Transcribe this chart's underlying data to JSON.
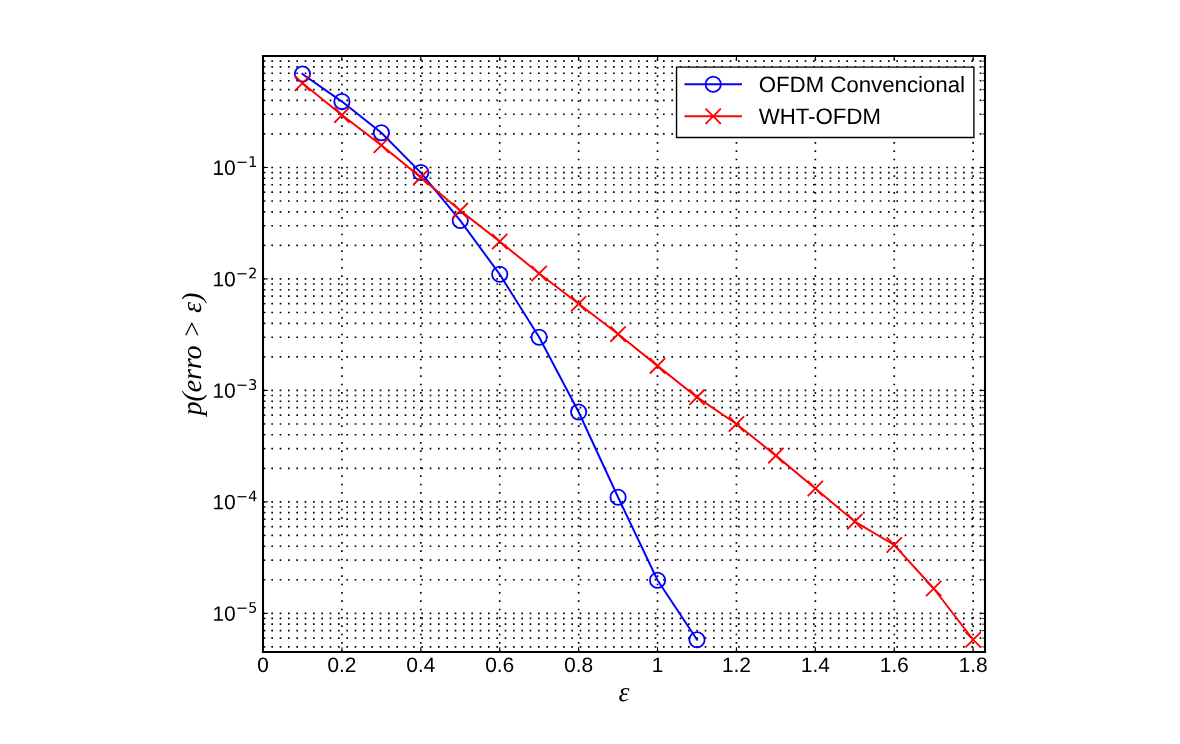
{
  "chart_data": {
    "type": "line",
    "xlabel": "ε",
    "ylabel": "p(erro > ε)",
    "log": "y",
    "grid": true,
    "legend": "top right",
    "xlim": [
      0,
      1.83
    ],
    "ylim": [
      4.5e-06,
      1
    ],
    "xticks": [
      0,
      0.2,
      0.4,
      0.6,
      0.8,
      1,
      1.2,
      1.4,
      1.6,
      1.8
    ],
    "yticks": [
      {
        "value": 1e-05,
        "label": "10$^{−5}$"
      },
      {
        "value": 0.0001,
        "label": "10$^{−4}$"
      },
      {
        "value": 0.001,
        "label": "10$^{−3}$"
      },
      {
        "value": 0.01,
        "label": "10$^{−2}$"
      },
      {
        "value": 0.1,
        "label": "10$^{−1}$"
      }
    ],
    "series": [
      {
        "name": "OFDM Convencional",
        "color": "#0000ff",
        "marker": "circle",
        "x": [
          0.1,
          0.2,
          0.3,
          0.4,
          0.5,
          0.6,
          0.7,
          0.8,
          0.9,
          1.0,
          1.1
        ],
        "values": [
          0.69,
          0.39,
          0.205,
          0.09,
          0.0334,
          0.011,
          0.003,
          0.00064,
          0.00011,
          1.98e-05,
          5.8e-06
        ]
      },
      {
        "name": "WHT-OFDM",
        "color": "#ff0000",
        "marker": "cross",
        "x": [
          0.1,
          0.2,
          0.3,
          0.4,
          0.5,
          0.6,
          0.7,
          0.8,
          0.9,
          1.0,
          1.1,
          1.2,
          1.3,
          1.4,
          1.5,
          1.6,
          1.7,
          1.8
        ],
        "values": [
          0.57,
          0.295,
          0.158,
          0.0815,
          0.041,
          0.0217,
          0.0112,
          0.006,
          0.0032,
          0.00166,
          0.00087,
          0.0005,
          0.00026,
          0.000132,
          6.65e-05,
          4.1e-05,
          1.67e-05,
          5.8e-06
        ]
      }
    ]
  }
}
